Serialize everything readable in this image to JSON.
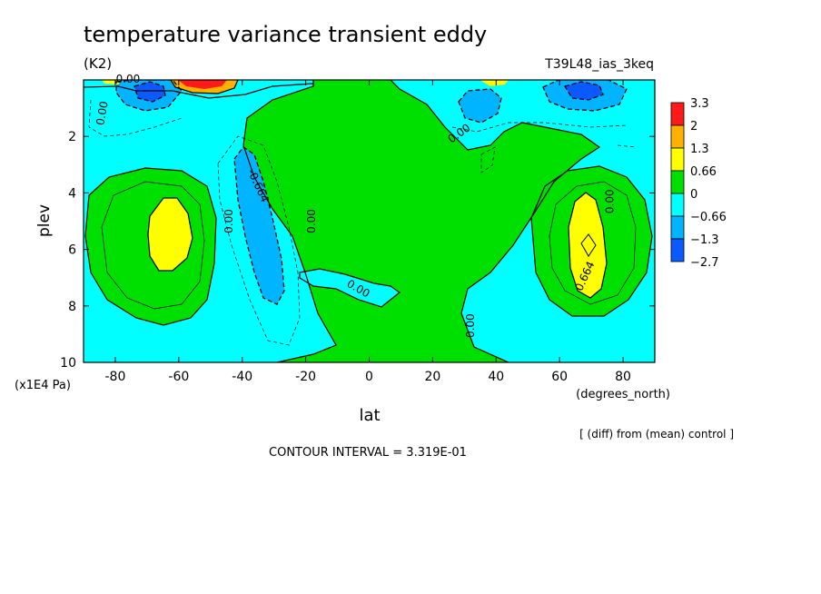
{
  "chart_data": {
    "type": "heatmap",
    "title": "temperature variance transient eddy",
    "units": "(K2)",
    "run_label": "T39L48_ias_3keq",
    "xlabel": "lat",
    "x_units": "(degrees_north)",
    "ylabel": "plev",
    "y_units": "(x1E4 Pa)",
    "x_range": [
      -90,
      90
    ],
    "y_range": [
      0,
      10
    ],
    "y_inverted": true,
    "x_ticks": [
      -80,
      -60,
      -40,
      -20,
      0,
      20,
      40,
      60,
      80
    ],
    "y_ticks": [
      2,
      4,
      6,
      8,
      10
    ],
    "x_tick_labels": [
      "-80",
      "-60",
      "-40",
      "-20",
      "0",
      "20",
      "40",
      "60",
      "80"
    ],
    "y_tick_labels": [
      "2",
      "4",
      "6",
      "8",
      "10"
    ],
    "footer_note": "[ (diff) from (mean) control ]",
    "contour_interval_text": "CONTOUR INTERVAL = 3.319E-01",
    "contour_interval": 0.3319,
    "colorbar": {
      "levels": [
        "3.3",
        "2",
        "1.3",
        "0.66",
        "0",
        "−0.66",
        "−1.3",
        "−2.7"
      ],
      "colors": [
        "#ff1a1a",
        "#ffb000",
        "#ffff00",
        "#00e000",
        "#00ffff",
        "#00b4ff",
        "#0a5aff"
      ]
    },
    "contour_labels": [
      {
        "text": "0.00",
        "lat": -76,
        "plev": 0.1,
        "angle": 0
      },
      {
        "text": "0.00",
        "lat": -83,
        "plev": 1.2,
        "angle": -80
      },
      {
        "text": "0.00",
        "lat": -43,
        "plev": 5.0,
        "angle": -90
      },
      {
        "text": "-0.664",
        "lat": -36,
        "plev": 3.8,
        "angle": 65
      },
      {
        "text": "0.00",
        "lat": -17,
        "plev": 5.0,
        "angle": -90
      },
      {
        "text": "0.00",
        "lat": -4,
        "plev": 7.5,
        "angle": 30
      },
      {
        "text": "0.00",
        "lat": 29,
        "plev": 2.0,
        "angle": -35
      },
      {
        "text": "0.00",
        "lat": 33,
        "plev": 8.7,
        "angle": -90
      },
      {
        "text": "0.00",
        "lat": 77,
        "plev": 4.3,
        "angle": -90
      },
      {
        "text": "0.664",
        "lat": 69,
        "plev": 7.0,
        "angle": -65
      }
    ]
  }
}
